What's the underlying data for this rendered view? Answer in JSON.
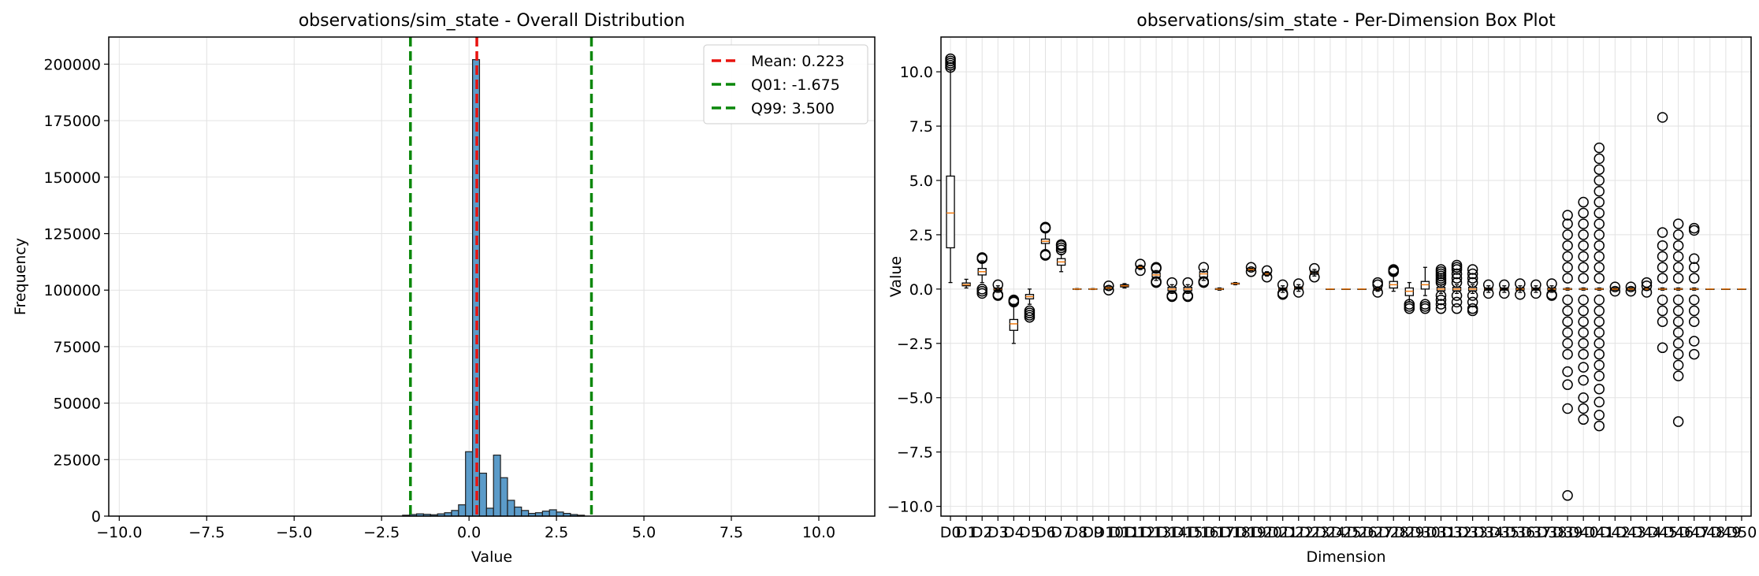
{
  "chart_data": [
    {
      "type": "bar",
      "title": "observations/sim_state - Overall Distribution",
      "xlabel": "Value",
      "ylabel": "Frequency",
      "xlim": [
        -10.3,
        11.6
      ],
      "ylim": [
        0,
        212000
      ],
      "xticks": [
        -10.0,
        -7.5,
        -5.0,
        -2.5,
        0.0,
        2.5,
        5.0,
        7.5,
        10.0
      ],
      "xtick_labels": [
        "−10.0",
        "−7.5",
        "−5.0",
        "−2.5",
        "0.0",
        "2.5",
        "5.0",
        "7.5",
        "10.0"
      ],
      "yticks": [
        0,
        25000,
        50000,
        75000,
        100000,
        125000,
        150000,
        175000,
        200000
      ],
      "ytick_labels": [
        "0",
        "25000",
        "50000",
        "75000",
        "100000",
        "125000",
        "150000",
        "175000",
        "200000"
      ],
      "grid": true,
      "bar_color": "#5b9bc9",
      "bins": {
        "edges_start": -9.9,
        "bin_width": 0.2,
        "counts": [
          0,
          0,
          0,
          0,
          0,
          0,
          0,
          0,
          0,
          0,
          0,
          0,
          0,
          0,
          0,
          0,
          0,
          0,
          0,
          0,
          0,
          0,
          0,
          0,
          0,
          0,
          0,
          0,
          0,
          0,
          0,
          0,
          0,
          0,
          0,
          0,
          0,
          0,
          0,
          0,
          400,
          700,
          1000,
          800,
          600,
          1000,
          1500,
          2500,
          5000,
          28500,
          202000,
          19000,
          3500,
          27000,
          17000,
          7000,
          4000,
          2500,
          1200,
          1500,
          2200,
          2800,
          1800,
          1200,
          700,
          400,
          0,
          0,
          0,
          0,
          0,
          0,
          0,
          0,
          0,
          0,
          0,
          0,
          0,
          0,
          0,
          0,
          0,
          0,
          0,
          0,
          0,
          0,
          0,
          0,
          0,
          0,
          0,
          0,
          0,
          0,
          0,
          0,
          0,
          0,
          0,
          0,
          0,
          0,
          0,
          0,
          0,
          0,
          0
        ]
      },
      "vlines": [
        {
          "label": "Mean: 0.223",
          "x": 0.223,
          "color": "#e8130f"
        },
        {
          "label": "Q01: -1.675",
          "x": -1.675,
          "color": "#0a870a"
        },
        {
          "label": "Q99: 3.500",
          "x": 3.5,
          "color": "#0a870a"
        }
      ],
      "legend_position": "top-right"
    },
    {
      "type": "box",
      "title": "observations/sim_state - Per-Dimension Box Plot",
      "xlabel": "Dimension",
      "ylabel": "Value",
      "ylim": [
        -10.45,
        11.6
      ],
      "yticks": [
        -10.0,
        -7.5,
        -5.0,
        -2.5,
        0.0,
        2.5,
        5.0,
        7.5,
        10.0
      ],
      "ytick_labels": [
        "−10.0",
        "−7.5",
        "−5.0",
        "−2.5",
        "0.0",
        "2.5",
        "5.0",
        "7.5",
        "10.0"
      ],
      "grid": true,
      "median_color": "#f07a10",
      "categories": [
        "D0",
        "D1",
        "D2",
        "D3",
        "D4",
        "D5",
        "D6",
        "D7",
        "D8",
        "D9",
        "D10",
        "D11",
        "D12",
        "D13",
        "D14",
        "D15",
        "D16",
        "D17",
        "D18",
        "D19",
        "D20",
        "D21",
        "D22",
        "D23",
        "D24",
        "D25",
        "D26",
        "D27",
        "D28",
        "D29",
        "D30",
        "D31",
        "D32",
        "D33",
        "D34",
        "D35",
        "D36",
        "D37",
        "D38",
        "D39",
        "D40",
        "D41",
        "D42",
        "D43",
        "D44",
        "D45",
        "D46",
        "D47",
        "D48",
        "D49",
        "D50"
      ],
      "boxes": [
        {
          "whislo": 0.3,
          "q1": 1.9,
          "med": 3.5,
          "q3": 5.2,
          "whishi": 10.1,
          "fliers": [
            10.2,
            10.3,
            10.4,
            10.5,
            10.6
          ]
        },
        {
          "whislo": 0.05,
          "q1": 0.15,
          "med": 0.2,
          "q3": 0.28,
          "whishi": 0.45,
          "fliers": []
        },
        {
          "whislo": 0.3,
          "q1": 0.65,
          "med": 0.8,
          "q3": 0.95,
          "whishi": 1.3,
          "fliers": [
            1.4,
            1.45,
            0.0,
            -0.1,
            -0.2
          ]
        },
        {
          "whislo": -0.15,
          "q1": -0.05,
          "med": 0.0,
          "q3": 0.05,
          "whishi": 0.15,
          "fliers": [
            -0.25,
            -0.3,
            0.2
          ]
        },
        {
          "whislo": -2.5,
          "q1": -1.9,
          "med": -1.6,
          "q3": -1.4,
          "whishi": -0.7,
          "fliers": [
            -0.5,
            -0.55,
            -0.6
          ]
        },
        {
          "whislo": -0.7,
          "q1": -0.45,
          "med": -0.35,
          "q3": -0.25,
          "whishi": 0.0,
          "fliers": [
            -1.0,
            -1.1,
            -1.2,
            -1.3
          ]
        },
        {
          "whislo": 1.8,
          "q1": 2.1,
          "med": 2.2,
          "q3": 2.3,
          "whishi": 2.6,
          "fliers": [
            2.8,
            2.85,
            1.6,
            1.55
          ]
        },
        {
          "whislo": 0.8,
          "q1": 1.1,
          "med": 1.25,
          "q3": 1.4,
          "whishi": 1.6,
          "fliers": [
            1.8,
            1.9,
            2.0,
            2.05
          ]
        },
        {
          "whislo": -0.02,
          "q1": -0.01,
          "med": 0.0,
          "q3": 0.01,
          "whishi": 0.02,
          "fliers": []
        },
        {
          "whislo": -0.02,
          "q1": -0.01,
          "med": 0.0,
          "q3": 0.01,
          "whishi": 0.02,
          "fliers": []
        },
        {
          "whislo": 0.0,
          "q1": 0.03,
          "med": 0.05,
          "q3": 0.07,
          "whishi": 0.1,
          "fliers": [
            -0.05,
            0.15
          ]
        },
        {
          "whislo": 0.05,
          "q1": 0.1,
          "med": 0.15,
          "q3": 0.2,
          "whishi": 0.25,
          "fliers": []
        },
        {
          "whislo": 0.9,
          "q1": 0.95,
          "med": 1.0,
          "q3": 1.05,
          "whishi": 1.1,
          "fliers": [
            0.85,
            1.15
          ]
        },
        {
          "whislo": 0.4,
          "q1": 0.55,
          "med": 0.65,
          "q3": 0.75,
          "whishi": 0.85,
          "fliers": [
            0.3,
            0.35,
            0.95,
            1.0
          ]
        },
        {
          "whislo": -0.2,
          "q1": -0.08,
          "med": 0.0,
          "q3": 0.08,
          "whishi": 0.2,
          "fliers": [
            -0.3,
            0.3,
            -0.35
          ]
        },
        {
          "whislo": -0.2,
          "q1": -0.08,
          "med": 0.0,
          "q3": 0.08,
          "whishi": 0.2,
          "fliers": [
            -0.3,
            0.3,
            -0.35
          ]
        },
        {
          "whislo": 0.4,
          "q1": 0.55,
          "med": 0.7,
          "q3": 0.8,
          "whishi": 0.9,
          "fliers": [
            0.35,
            1.0,
            0.3
          ]
        },
        {
          "whislo": -0.05,
          "q1": -0.02,
          "med": 0.0,
          "q3": 0.02,
          "whishi": 0.05,
          "fliers": []
        },
        {
          "whislo": 0.2,
          "q1": 0.23,
          "med": 0.25,
          "q3": 0.27,
          "whishi": 0.3,
          "fliers": []
        },
        {
          "whislo": 0.85,
          "q1": 0.88,
          "med": 0.9,
          "q3": 0.92,
          "whishi": 0.95,
          "fliers": [
            0.8,
            1.0
          ]
        },
        {
          "whislo": 0.6,
          "q1": 0.65,
          "med": 0.7,
          "q3": 0.75,
          "whishi": 0.8,
          "fliers": [
            0.55,
            0.85
          ]
        },
        {
          "whislo": -0.15,
          "q1": -0.05,
          "med": 0.0,
          "q3": 0.05,
          "whishi": 0.15,
          "fliers": [
            -0.25,
            0.2,
            -0.2
          ]
        },
        {
          "whislo": -0.1,
          "q1": 0.0,
          "med": 0.05,
          "q3": 0.1,
          "whishi": 0.2,
          "fliers": [
            -0.15,
            0.25
          ]
        },
        {
          "whislo": 0.6,
          "q1": 0.68,
          "med": 0.75,
          "q3": 0.82,
          "whishi": 0.9,
          "fliers": [
            0.55,
            0.95
          ]
        },
        {
          "whislo": 0,
          "q1": 0,
          "med": 0,
          "q3": 0,
          "whishi": 0,
          "fliers": []
        },
        {
          "whislo": 0,
          "q1": 0,
          "med": 0,
          "q3": 0,
          "whishi": 0,
          "fliers": []
        },
        {
          "whislo": 0,
          "q1": 0,
          "med": 0,
          "q3": 0,
          "whishi": 0,
          "fliers": []
        },
        {
          "whislo": -0.1,
          "q1": -0.05,
          "med": 0.0,
          "q3": 0.05,
          "whishi": 0.1,
          "fliers": [
            0.2,
            0.3,
            -0.15
          ]
        },
        {
          "whislo": -0.1,
          "q1": 0.05,
          "med": 0.2,
          "q3": 0.35,
          "whishi": 0.6,
          "fliers": [
            0.8,
            0.85,
            0.9
          ]
        },
        {
          "whislo": -0.6,
          "q1": -0.3,
          "med": -0.1,
          "q3": 0.05,
          "whishi": 0.3,
          "fliers": [
            -0.7,
            -0.8,
            -0.9
          ]
        },
        {
          "whislo": -0.3,
          "q1": 0.0,
          "med": 0.2,
          "q3": 0.35,
          "whishi": 1.0,
          "fliers": [
            -0.7,
            -0.8,
            -0.9
          ]
        },
        {
          "whislo": -0.2,
          "q1": -0.08,
          "med": 0.0,
          "q3": 0.08,
          "whishi": 0.2,
          "fliers": [
            0.3,
            0.4,
            0.5,
            0.6,
            0.7,
            0.8,
            0.9,
            -0.3,
            -0.5,
            -0.7,
            -0.9
          ]
        },
        {
          "whislo": -0.2,
          "q1": -0.08,
          "med": 0.0,
          "q3": 0.08,
          "whishi": 0.2,
          "fliers": [
            0.3,
            0.5,
            0.7,
            0.9,
            1.0,
            1.1,
            -0.3,
            -0.6,
            -0.9
          ]
        },
        {
          "whislo": -0.2,
          "q1": -0.08,
          "med": 0.0,
          "q3": 0.08,
          "whishi": 0.2,
          "fliers": [
            0.3,
            0.5,
            0.7,
            0.9,
            -0.3,
            -0.6,
            -0.9,
            -1.0
          ]
        },
        {
          "whislo": -0.15,
          "q1": -0.05,
          "med": 0.0,
          "q3": 0.05,
          "whishi": 0.15,
          "fliers": [
            0.2,
            -0.2
          ]
        },
        {
          "whislo": -0.15,
          "q1": -0.05,
          "med": 0.0,
          "q3": 0.05,
          "whishi": 0.15,
          "fliers": [
            0.2,
            -0.2
          ]
        },
        {
          "whislo": -0.15,
          "q1": -0.05,
          "med": 0.0,
          "q3": 0.05,
          "whishi": 0.15,
          "fliers": [
            0.25,
            -0.25
          ]
        },
        {
          "whislo": -0.15,
          "q1": -0.05,
          "med": 0.0,
          "q3": 0.05,
          "whishi": 0.15,
          "fliers": [
            0.2,
            -0.2
          ]
        },
        {
          "whislo": -0.15,
          "q1": -0.05,
          "med": 0.0,
          "q3": 0.05,
          "whishi": 0.15,
          "fliers": [
            0.25,
            -0.25,
            -0.3
          ]
        },
        {
          "whislo": -0.05,
          "q1": -0.02,
          "med": 0.0,
          "q3": 0.02,
          "whishi": 0.05,
          "fliers": [
            -9.5,
            -5.5,
            -4.4,
            -3.8,
            -3.0,
            -2.5,
            -2.0,
            -1.5,
            -1.0,
            -0.5,
            0.5,
            1.0,
            1.5,
            2.0,
            2.5,
            3.0,
            3.4
          ]
        },
        {
          "whislo": -0.05,
          "q1": -0.02,
          "med": 0.0,
          "q3": 0.02,
          "whishi": 0.05,
          "fliers": [
            -6.0,
            -5.5,
            -5.0,
            -4.2,
            -3.6,
            -3.0,
            -2.5,
            -2.0,
            -1.5,
            -1.0,
            -0.5,
            0.5,
            1.0,
            1.5,
            2.0,
            2.5,
            3.0,
            3.5,
            4.0
          ]
        },
        {
          "whislo": -0.05,
          "q1": -0.02,
          "med": 0.0,
          "q3": 0.02,
          "whishi": 0.05,
          "fliers": [
            -6.3,
            -5.8,
            -5.2,
            -4.6,
            -4.0,
            -3.5,
            -3.0,
            -2.5,
            -2.0,
            -1.5,
            -1.0,
            -0.5,
            0.5,
            1.0,
            1.5,
            2.0,
            2.5,
            3.0,
            3.5,
            4.0,
            4.5,
            5.0,
            5.5,
            6.0,
            6.5
          ]
        },
        {
          "whislo": -0.05,
          "q1": -0.02,
          "med": 0.0,
          "q3": 0.02,
          "whishi": 0.05,
          "fliers": [
            0.1,
            -0.1
          ]
        },
        {
          "whislo": -0.05,
          "q1": -0.02,
          "med": 0.0,
          "q3": 0.02,
          "whishi": 0.05,
          "fliers": [
            0.1,
            -0.1
          ]
        },
        {
          "whislo": -0.05,
          "q1": -0.02,
          "med": 0.0,
          "q3": 0.02,
          "whishi": 0.05,
          "fliers": [
            0.3,
            0.15,
            -0.15
          ]
        },
        {
          "whislo": -0.05,
          "q1": -0.02,
          "med": 0.0,
          "q3": 0.02,
          "whishi": 0.05,
          "fliers": [
            -2.7,
            -1.5,
            -1.0,
            -0.5,
            0.5,
            1.0,
            1.5,
            2.0,
            2.6,
            7.9
          ]
        },
        {
          "whislo": -0.05,
          "q1": -0.02,
          "med": 0.0,
          "q3": 0.02,
          "whishi": 0.05,
          "fliers": [
            -6.1,
            -4.0,
            -3.5,
            -3.0,
            -2.5,
            -2.0,
            -1.5,
            -1.0,
            -0.5,
            0.5,
            1.0,
            1.5,
            2.0,
            2.5,
            3.0
          ]
        },
        {
          "whislo": -0.05,
          "q1": -0.02,
          "med": 0.0,
          "q3": 0.02,
          "whishi": 0.05,
          "fliers": [
            -3.0,
            -2.4,
            -1.5,
            -1.0,
            -0.5,
            0.5,
            1.0,
            1.4,
            2.7,
            2.8
          ]
        },
        {
          "whislo": 0,
          "q1": 0,
          "med": 0,
          "q3": 0,
          "whishi": 0,
          "fliers": []
        },
        {
          "whislo": 0,
          "q1": 0,
          "med": 0,
          "q3": 0,
          "whishi": 0,
          "fliers": []
        },
        {
          "whislo": 0,
          "q1": 0,
          "med": 0,
          "q3": 0,
          "whishi": 0,
          "fliers": []
        }
      ]
    }
  ]
}
